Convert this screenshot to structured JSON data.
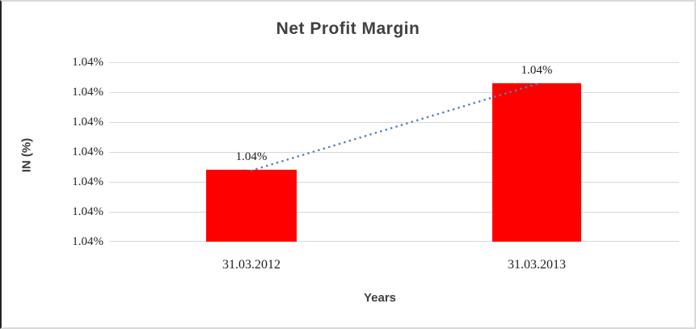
{
  "chart_data": {
    "type": "bar",
    "title": "Net Profit Margin",
    "xlabel": "Years",
    "ylabel": "IN (%)",
    "categories": [
      "31.03.2012",
      "31.03.2013"
    ],
    "series": [
      {
        "name": "Net Profit Margin",
        "values": [
          1.04,
          1.04
        ],
        "data_labels": [
          "1.04%",
          "1.04%"
        ],
        "color": "#ff0000"
      }
    ],
    "ytick_labels": [
      "1.04%",
      "1.04%",
      "1.04%",
      "1.04%",
      "1.04%",
      "1.04%",
      "1.04%"
    ],
    "bar_heights_pct": [
      40.1,
      88.3
    ],
    "trendline": {
      "style": "dotted",
      "color": "#4f81bd"
    },
    "gridlines": true,
    "legend": false,
    "plot_background": "#ffffff",
    "gridline_color": "#d9d9d9"
  }
}
